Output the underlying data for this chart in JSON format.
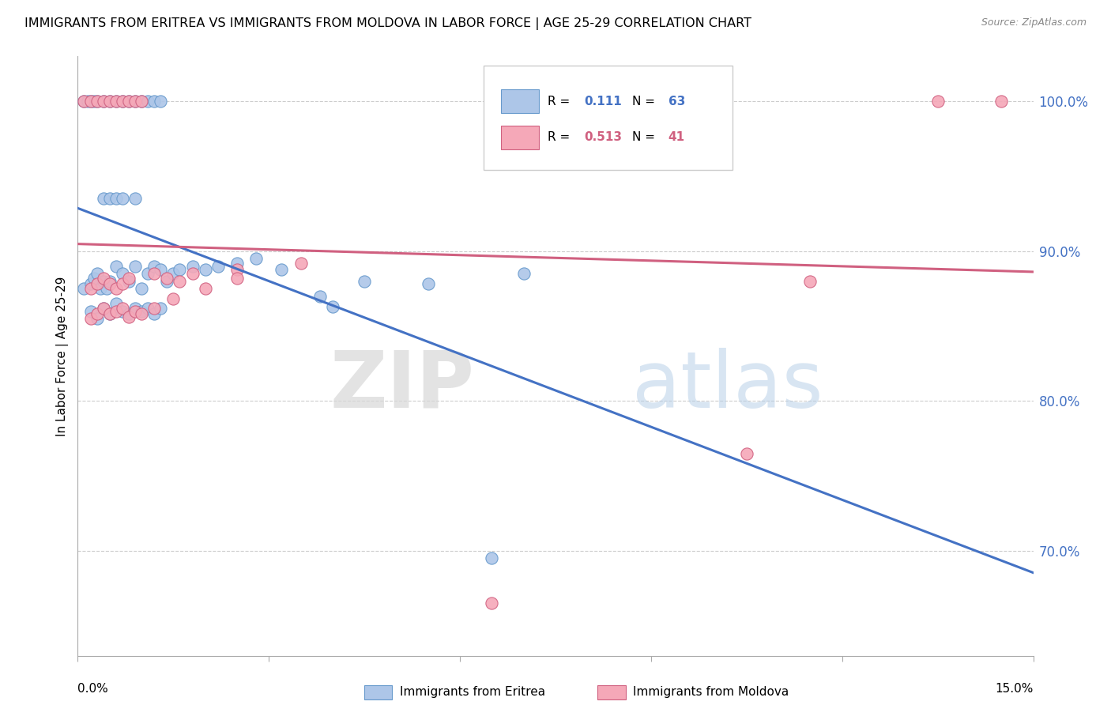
{
  "title": "IMMIGRANTS FROM ERITREA VS IMMIGRANTS FROM MOLDOVA IN LABOR FORCE | AGE 25-29 CORRELATION CHART",
  "source": "Source: ZipAtlas.com",
  "ylabel": "In Labor Force | Age 25-29",
  "ylabel_tick_values": [
    1.0,
    0.9,
    0.8,
    0.7
  ],
  "xmin": 0.0,
  "xmax": 0.15,
  "ymin": 0.63,
  "ymax": 1.03,
  "eritrea_color": "#adc6e8",
  "eritrea_edge_color": "#6699cc",
  "moldova_color": "#f5a8b8",
  "moldova_edge_color": "#d06080",
  "eritrea_line_color": "#4472c4",
  "moldova_line_color": "#d06080",
  "eritrea_R": 0.111,
  "eritrea_N": 63,
  "moldova_R": 0.513,
  "moldova_N": 41,
  "legend_label_eritrea": "Immigrants from Eritrea",
  "legend_label_moldova": "Immigrants from Moldova",
  "watermark_zip": "ZIP",
  "watermark_atlas": "atlas",
  "background_color": "#ffffff",
  "eritrea_x": [
    0.001,
    0.002,
    0.0025,
    0.003,
    0.0035,
    0.004,
    0.0045,
    0.005,
    0.006,
    0.007,
    0.008,
    0.009,
    0.01,
    0.011,
    0.012,
    0.013,
    0.014,
    0.015,
    0.016,
    0.018,
    0.02,
    0.022,
    0.025,
    0.028,
    0.032,
    0.038,
    0.045,
    0.055,
    0.07,
    0.001,
    0.0015,
    0.002,
    0.0025,
    0.003,
    0.004,
    0.005,
    0.006,
    0.007,
    0.008,
    0.009,
    0.01,
    0.011,
    0.012,
    0.013,
    0.002,
    0.003,
    0.004,
    0.005,
    0.006,
    0.007,
    0.008,
    0.009,
    0.01,
    0.011,
    0.012,
    0.013,
    0.004,
    0.005,
    0.006,
    0.007,
    0.009,
    0.04,
    0.065
  ],
  "eritrea_y": [
    0.875,
    0.878,
    0.882,
    0.885,
    0.875,
    0.88,
    0.875,
    0.88,
    0.89,
    0.885,
    0.88,
    0.89,
    0.875,
    0.885,
    0.89,
    0.888,
    0.88,
    0.885,
    0.888,
    0.89,
    0.888,
    0.89,
    0.892,
    0.895,
    0.888,
    0.87,
    0.88,
    0.878,
    0.885,
    1.0,
    1.0,
    1.0,
    1.0,
    1.0,
    1.0,
    1.0,
    1.0,
    1.0,
    1.0,
    1.0,
    1.0,
    1.0,
    1.0,
    1.0,
    0.86,
    0.855,
    0.862,
    0.858,
    0.865,
    0.86,
    0.858,
    0.862,
    0.86,
    0.862,
    0.858,
    0.862,
    0.935,
    0.935,
    0.935,
    0.935,
    0.935,
    0.863,
    0.695
  ],
  "moldova_x": [
    0.001,
    0.002,
    0.003,
    0.004,
    0.005,
    0.006,
    0.007,
    0.008,
    0.009,
    0.01,
    0.002,
    0.003,
    0.004,
    0.005,
    0.006,
    0.007,
    0.008,
    0.012,
    0.014,
    0.016,
    0.018,
    0.025,
    0.035,
    0.002,
    0.003,
    0.004,
    0.005,
    0.006,
    0.007,
    0.008,
    0.009,
    0.01,
    0.012,
    0.015,
    0.02,
    0.025,
    0.065,
    0.105,
    0.115,
    0.135,
    0.145
  ],
  "moldova_y": [
    1.0,
    1.0,
    1.0,
    1.0,
    1.0,
    1.0,
    1.0,
    1.0,
    1.0,
    1.0,
    0.875,
    0.878,
    0.882,
    0.878,
    0.875,
    0.878,
    0.882,
    0.885,
    0.882,
    0.88,
    0.885,
    0.888,
    0.892,
    0.855,
    0.858,
    0.862,
    0.858,
    0.86,
    0.862,
    0.856,
    0.86,
    0.858,
    0.862,
    0.868,
    0.875,
    0.882,
    0.665,
    0.765,
    0.88,
    1.0,
    1.0
  ]
}
